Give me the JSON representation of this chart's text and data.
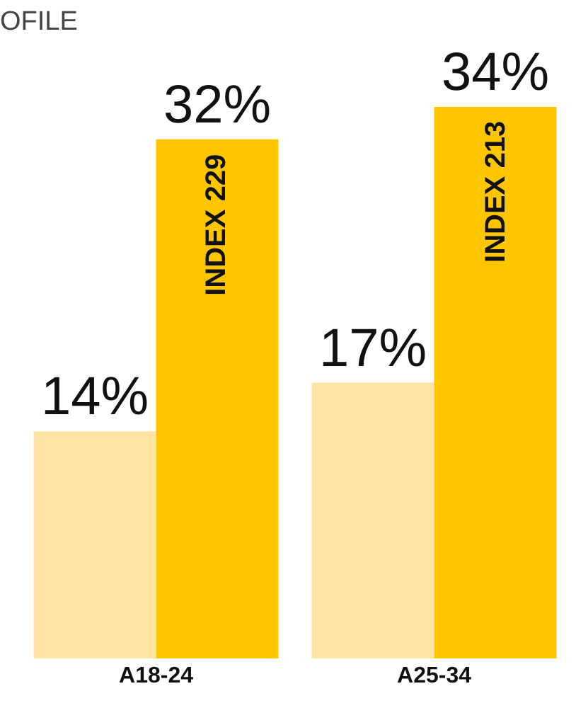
{
  "chart_data": {
    "type": "bar",
    "title": "OFILE",
    "categories": [
      "A18-24",
      "A25-34"
    ],
    "series": [
      {
        "color": "#fee4a4",
        "values": [
          14,
          17
        ],
        "value_labels": [
          "14%",
          "17%"
        ]
      },
      {
        "color": "#ffc600",
        "values": [
          32,
          34
        ],
        "value_labels": [
          "32%",
          "34%"
        ]
      }
    ],
    "annotations": [
      {
        "text": "INDEX 229",
        "x": "A18-24"
      },
      {
        "text": "INDEX 213",
        "x": "A25-34"
      }
    ],
    "tick_labels": "x"
  }
}
